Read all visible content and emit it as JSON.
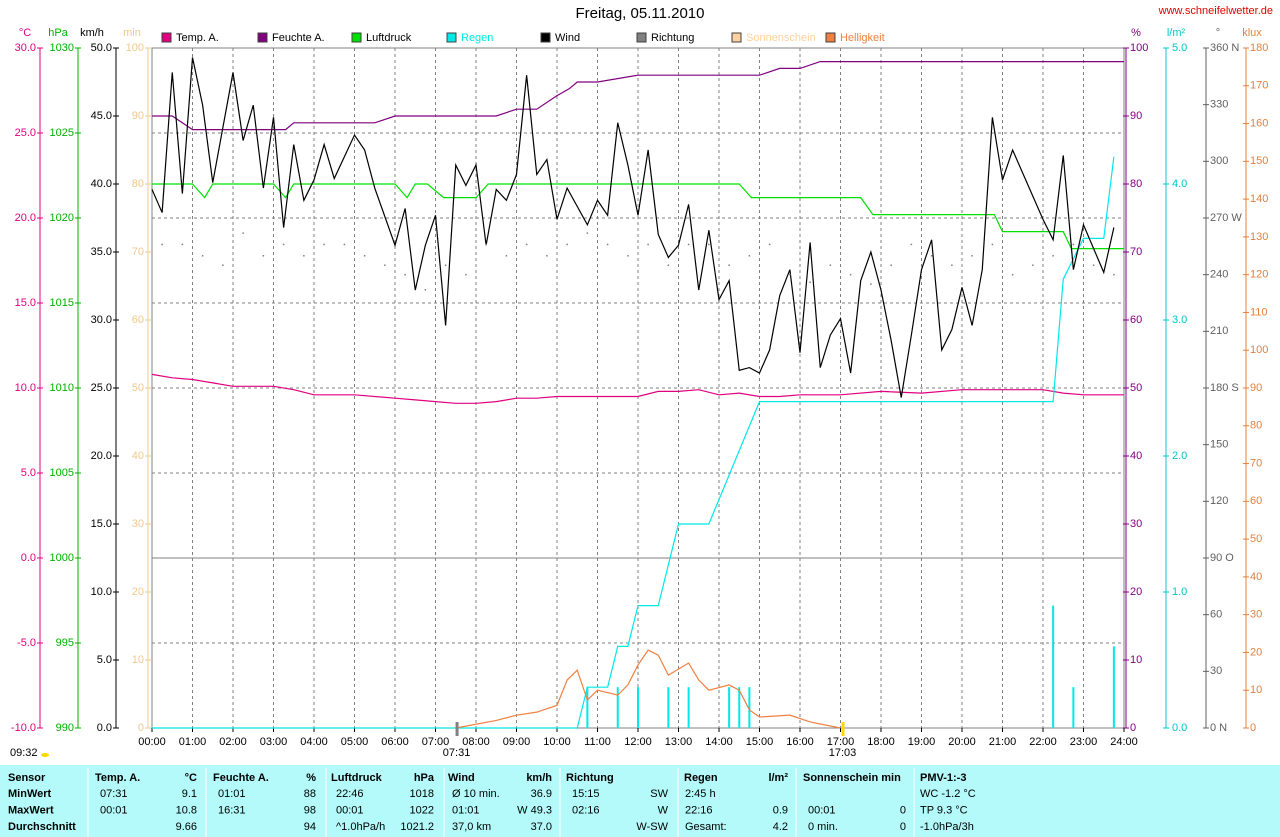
{
  "chart_data": {
    "type": "line",
    "title": "Freitag, 05.11.2010",
    "source": "www.schneifelwetter.de",
    "timestamp": "09:32",
    "xlim": [
      0,
      24
    ],
    "xticks": [
      {
        "value": 0,
        "label": "00:00"
      },
      {
        "value": 1,
        "label": "01:00"
      },
      {
        "value": 2,
        "label": "02:00"
      },
      {
        "value": 3,
        "label": "03:00"
      },
      {
        "value": 4,
        "label": "04:00"
      },
      {
        "value": 5,
        "label": "05:00"
      },
      {
        "value": 6,
        "label": "06:00"
      },
      {
        "value": 7,
        "label": "07:00"
      },
      {
        "value": 8,
        "label": "08:00"
      },
      {
        "value": 9,
        "label": "09:00"
      },
      {
        "value": 10,
        "label": "10:00"
      },
      {
        "value": 11,
        "label": "11:00"
      },
      {
        "value": 12,
        "label": "12:00"
      },
      {
        "value": 13,
        "label": "13:00"
      },
      {
        "value": 14,
        "label": "14:00"
      },
      {
        "value": 15,
        "label": "15:00"
      },
      {
        "value": 16,
        "label": "16:00"
      },
      {
        "value": 17,
        "label": "17:00"
      },
      {
        "value": 18,
        "label": "18:00"
      },
      {
        "value": 19,
        "label": "19:00"
      },
      {
        "value": 20,
        "label": "20:00"
      },
      {
        "value": 21,
        "label": "21:00"
      },
      {
        "value": 22,
        "label": "22:00"
      },
      {
        "value": 23,
        "label": "23:00"
      },
      {
        "value": 24,
        "label": "24:00"
      }
    ],
    "grid": true,
    "axes": [
      {
        "label": "°C",
        "color": "#e0007f",
        "lim": [
          -10,
          30
        ],
        "ticks": [
          {
            "value": -10,
            "label": "-10.0"
          },
          {
            "value": -5,
            "label": "-5.0"
          },
          {
            "value": 0,
            "label": "0.0"
          },
          {
            "value": 5,
            "label": "5.0"
          },
          {
            "value": 10,
            "label": "10.0"
          },
          {
            "value": 15,
            "label": "15.0"
          },
          {
            "value": 20,
            "label": "20.0"
          },
          {
            "value": 25,
            "label": "25.0"
          },
          {
            "value": 30,
            "label": "30.0"
          }
        ]
      },
      {
        "label": "hPa",
        "color": "#00b000",
        "lim": [
          990,
          1030
        ],
        "ticks": [
          990,
          995,
          1000,
          1005,
          1010,
          1015,
          1020,
          1025,
          1030
        ]
      },
      {
        "label": "km/h",
        "color": "#000000",
        "lim": [
          0,
          50
        ],
        "ticks": [
          {
            "value": 0,
            "label": "0.0"
          },
          {
            "value": 5,
            "label": "5.0"
          },
          {
            "value": 10,
            "label": "10.0"
          },
          {
            "value": 15,
            "label": "15.0"
          },
          {
            "value": 20,
            "label": "20.0"
          },
          {
            "value": 25,
            "label": "25.0"
          },
          {
            "value": 30,
            "label": "30.0"
          },
          {
            "value": 35,
            "label": "35.0"
          },
          {
            "value": 40,
            "label": "40.0"
          },
          {
            "value": 45,
            "label": "45.0"
          },
          {
            "value": 50,
            "label": "50.0"
          }
        ]
      },
      {
        "label": "min",
        "color": "#f0c890",
        "lim": [
          0,
          100
        ],
        "ticks": [
          0,
          10,
          20,
          30,
          40,
          50,
          60,
          70,
          80,
          90,
          100
        ]
      },
      {
        "label": "%",
        "color": "#800080",
        "lim": [
          0,
          100
        ],
        "ticks": [
          0,
          10,
          20,
          30,
          40,
          50,
          60,
          70,
          80,
          90,
          100
        ]
      },
      {
        "label": "l/m²",
        "color": "#00c8c8",
        "lim": [
          0,
          5
        ],
        "ticks": [
          {
            "value": 0,
            "label": "0.0"
          },
          {
            "value": 1,
            "label": "1.0"
          },
          {
            "value": 2,
            "label": "2.0"
          },
          {
            "value": 3,
            "label": "3.0"
          },
          {
            "value": 4,
            "label": "4.0"
          },
          {
            "value": 5,
            "label": "5.0"
          }
        ]
      },
      {
        "label": "°",
        "color": "#606060",
        "lim": [
          0,
          360
        ],
        "ticks": [
          {
            "value": 0,
            "label": "0   N"
          },
          30,
          60,
          {
            "value": 90,
            "label": "90   O"
          },
          120,
          150,
          {
            "value": 180,
            "label": "180  S"
          },
          210,
          240,
          {
            "value": 270,
            "label": "270  W"
          },
          300,
          330,
          {
            "value": 360,
            "label": "360  N"
          }
        ]
      },
      {
        "label": "klux",
        "color": "#e08040",
        "lim": [
          0,
          180
        ],
        "ticks": [
          0,
          10,
          20,
          30,
          40,
          50,
          60,
          70,
          80,
          90,
          100,
          110,
          120,
          130,
          140,
          150,
          160,
          170,
          180
        ]
      }
    ],
    "series": [
      {
        "name": "Temp. A.",
        "color": "#e0007f",
        "axis": 0,
        "kind": "line",
        "x": [
          0,
          0.5,
          1,
          1.5,
          2,
          3,
          3.5,
          4,
          5,
          6,
          6.5,
          7,
          7.5,
          8,
          8.5,
          9,
          9.5,
          10,
          11,
          12,
          12.5,
          13,
          13.5,
          14,
          14.5,
          15,
          15.5,
          16,
          17,
          18,
          19,
          20,
          21,
          22,
          22.5,
          23,
          24
        ],
        "values": [
          10.8,
          10.6,
          10.5,
          10.3,
          10.1,
          10.1,
          9.9,
          9.6,
          9.6,
          9.4,
          9.3,
          9.2,
          9.1,
          9.1,
          9.2,
          9.4,
          9.4,
          9.5,
          9.5,
          9.5,
          9.8,
          9.8,
          9.9,
          9.6,
          9.7,
          9.5,
          9.5,
          9.6,
          9.6,
          9.8,
          9.7,
          9.9,
          9.9,
          9.9,
          9.7,
          9.6,
          9.6
        ]
      },
      {
        "name": "Feuchte A.",
        "color": "#800080",
        "axis": 4,
        "kind": "line",
        "x": [
          0,
          0.5,
          1,
          3.3,
          3.5,
          5.5,
          6,
          8.5,
          9,
          9.5,
          10,
          10.3,
          10.5,
          11,
          12,
          15,
          15.5,
          16,
          16.5,
          24
        ],
        "values": [
          90,
          90,
          88,
          88,
          89,
          89,
          90,
          90,
          91,
          91,
          93,
          94,
          95,
          95,
          96,
          96,
          97,
          97,
          98,
          98
        ]
      },
      {
        "name": "Luftdruck",
        "color": "#00e000",
        "axis": 1,
        "kind": "line",
        "x": [
          0,
          1,
          1.3,
          1.5,
          2,
          3,
          3.3,
          3.5,
          4,
          6,
          6.3,
          6.5,
          6.8,
          7.2,
          8,
          8.3,
          14.5,
          14.8,
          17.5,
          17.8,
          20.8,
          21,
          22.5,
          22.7,
          24
        ],
        "values": [
          1022,
          1022,
          1021.2,
          1022,
          1022,
          1022,
          1021.2,
          1022,
          1022,
          1022,
          1021.2,
          1022,
          1022,
          1021.2,
          1021.2,
          1022,
          1022,
          1021.2,
          1021.2,
          1020.2,
          1020.2,
          1019.2,
          1019.2,
          1018.2,
          1018.2
        ]
      },
      {
        "name": "Regen",
        "color": "#00e8e8",
        "axis": 5,
        "kind": "line",
        "x": [
          0,
          10.5,
          10.75,
          11.25,
          11.5,
          11.75,
          12,
          12.5,
          12.75,
          13,
          13.75,
          15,
          22.25,
          22.5,
          23,
          23.5,
          23.75
        ],
        "values": [
          0,
          0,
          0.3,
          0.3,
          0.6,
          0.6,
          0.9,
          0.9,
          1.2,
          1.5,
          1.5,
          2.4,
          2.4,
          3.3,
          3.6,
          3.6,
          4.2
        ],
        "bar_x": [
          10.75,
          11.5,
          12,
          12.75,
          13.25,
          14.25,
          14.5,
          14.75,
          22.25,
          22.75,
          23.75
        ],
        "bar_values": [
          0.3,
          0.3,
          0.3,
          0.3,
          0.3,
          0.3,
          0.3,
          0.3,
          0.9,
          0.3,
          0.6
        ]
      },
      {
        "name": "Wind",
        "color": "#000000",
        "axis": 2,
        "kind": "line",
        "x": [
          0,
          0.25,
          0.5,
          0.75,
          1,
          1.25,
          1.5,
          2,
          2.25,
          2.5,
          2.75,
          3,
          3.25,
          3.5,
          3.75,
          4,
          4.25,
          4.5,
          5,
          5.25,
          5.5,
          6,
          6.25,
          6.5,
          6.75,
          7,
          7.25,
          7.5,
          7.75,
          8,
          8.25,
          8.5,
          8.75,
          9,
          9.25,
          9.5,
          9.75,
          10,
          10.25,
          10.75,
          11,
          11.25,
          11.5,
          11.75,
          12,
          12.25,
          12.5,
          12.75,
          13,
          13.25,
          13.5,
          13.75,
          14,
          14.25,
          14.5,
          14.75,
          15,
          15.25,
          15.5,
          15.75,
          16,
          16.25,
          16.5,
          16.75,
          17,
          17.25,
          17.5,
          17.75,
          18,
          18.25,
          18.5,
          18.75,
          19,
          19.25,
          19.5,
          19.75,
          20,
          20.25,
          20.5,
          20.75,
          21,
          21.25,
          22,
          22.25,
          22.5,
          22.75,
          23,
          23.5,
          23.75
        ],
        "values": [
          39.6,
          37.9,
          48.2,
          39.3,
          49.3,
          45.8,
          40.1,
          48.2,
          43.2,
          45.8,
          39.7,
          44.9,
          36.8,
          42.9,
          38.8,
          40.3,
          42.9,
          40.4,
          43.6,
          42.5,
          39.7,
          35.5,
          38.2,
          32.2,
          35.5,
          37.7,
          29.6,
          41.4,
          39.9,
          41.4,
          35.5,
          39.6,
          38.8,
          40.7,
          48.0,
          40.7,
          41.8,
          37.4,
          39.7,
          37.0,
          38.8,
          37.7,
          44.5,
          41.4,
          37.7,
          42.5,
          36.3,
          34.6,
          35.5,
          38.5,
          32.2,
          36.6,
          31.5,
          32.9,
          26.3,
          26.5,
          26.1,
          27.8,
          31.8,
          33.7,
          27.6,
          35.7,
          26.5,
          28.9,
          30.1,
          26.1,
          32.9,
          35.0,
          32.2,
          28.5,
          24.3,
          28.9,
          33.7,
          35.9,
          27.8,
          29.3,
          32.4,
          29.6,
          33.7,
          44.9,
          40.3,
          42.5,
          37.4,
          35.9,
          42.1,
          33.7,
          37.0,
          33.5,
          36.8
        ]
      },
      {
        "name": "Richtung",
        "color": "#808080",
        "axis": 6,
        "kind": "dots",
        "x": [
          0.25,
          0.75,
          1.25,
          1.75,
          2.25,
          2.75,
          3.25,
          3.75,
          4.25,
          4.75,
          5.25,
          5.75,
          6.25,
          6.75,
          7.25,
          7.75,
          8.25,
          8.75,
          9.25,
          9.75,
          10.25,
          10.75,
          11.25,
          11.75,
          12.25,
          12.75,
          13.25,
          13.75,
          14.25,
          14.75,
          15.25,
          15.75,
          16.25,
          16.75,
          17.25,
          17.75,
          18.25,
          18.75,
          19.25,
          19.75,
          20.25,
          20.75,
          21.25,
          21.75,
          22.25,
          22.75,
          23.25,
          23.75
        ],
        "values": [
          256,
          256,
          250,
          245,
          262,
          250,
          256,
          250,
          256,
          256,
          250,
          245,
          240,
          232,
          245,
          240,
          256,
          250,
          256,
          250,
          256,
          262,
          256,
          250,
          256,
          245,
          256,
          256,
          245,
          250,
          256,
          240,
          236,
          245,
          240,
          235,
          245,
          256,
          250,
          245,
          250,
          256,
          240,
          245,
          250,
          256,
          245,
          240
        ]
      },
      {
        "name": "Sonnenschein",
        "color": "#ffd0a0",
        "axis": 3,
        "kind": "line",
        "x": [],
        "values": []
      },
      {
        "name": "Helligkeit",
        "color": "#f08040",
        "axis": 7,
        "kind": "line",
        "x": [
          7.5,
          8.5,
          9,
          9.5,
          10,
          10.25,
          10.5,
          10.75,
          11,
          11.5,
          11.75,
          12,
          12.25,
          12.5,
          12.75,
          13.25,
          13.5,
          13.75,
          14.25,
          14.5,
          14.75,
          15,
          15.75,
          16.25,
          17
        ],
        "values": [
          0,
          2,
          3.4,
          4.2,
          6,
          12.7,
          15.3,
          7.4,
          10,
          8.7,
          11.4,
          16.7,
          20.6,
          19.3,
          14,
          17.2,
          12.7,
          10,
          11.4,
          10,
          4.8,
          2.9,
          3.4,
          1.6,
          0
        ]
      }
    ],
    "annotations": [
      {
        "x": 7.52,
        "label": "07:31"
      },
      {
        "x": 17.05,
        "label": "17:03"
      }
    ]
  },
  "table": {
    "rows": [
      [
        "Sensor",
        "Temp. A.",
        "°C",
        "Feuchte A.",
        "%",
        "Luftdruck",
        "hPa",
        "Wind",
        "km/h",
        "Richtung",
        null,
        "Regen",
        "l/m²",
        "Sonnenschein min",
        null,
        "PMV-1:-3"
      ],
      [
        "MinWert",
        "07:31",
        "9.1",
        "01:01",
        "88",
        "22:46",
        "1018",
        "Ø 10 min.",
        "36.9",
        "15:15",
        "SW",
        "2:45 h",
        null,
        null,
        null,
        "WC -1.2 °C"
      ],
      [
        "MaxWert",
        "00:01",
        "10.8",
        "16:31",
        "98",
        "00:01",
        "1022",
        "01:01",
        "W 49.3",
        "02:16",
        "W",
        "22:16",
        "0.9",
        "00:01",
        "0",
        "TP 9.3 °C"
      ],
      [
        "Durchschnitt",
        null,
        "9.66",
        null,
        "94",
        "^1.0hPa/h",
        "1021.2",
        "37,0 km",
        "37.0",
        null,
        "W-SW",
        "Gesamt:",
        "4.2",
        "0 min.",
        "0",
        "-1.0hPa/3h"
      ]
    ]
  }
}
